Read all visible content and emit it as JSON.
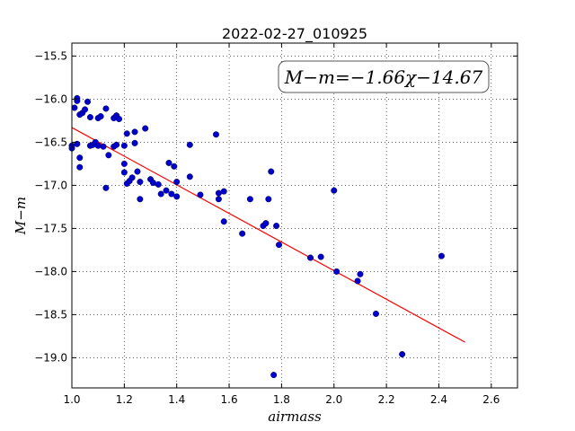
{
  "chart_data": {
    "type": "scatter",
    "title": "2022-02-27_010925",
    "xlabel": "airmass",
    "ylabel": "M−m",
    "xlim": [
      1.0,
      2.7
    ],
    "ylim": [
      -15.35,
      -19.35
    ],
    "y_inverted": true,
    "grid": true,
    "x_ticks": [
      "1.0",
      "1.2",
      "1.4",
      "1.6",
      "1.8",
      "2.0",
      "2.2",
      "2.4",
      "2.6"
    ],
    "y_ticks": [
      "−15.5",
      "−16.0",
      "−16.5",
      "−17.0",
      "−17.5",
      "−18.0",
      "−18.5",
      "−19.0"
    ],
    "annotation": "M−m=−1.66χ−14.67",
    "colors": {
      "points": "#0000cc",
      "fit_line": "#ff0000"
    },
    "fit_line": {
      "slope": -1.66,
      "intercept": -14.67,
      "x_range": [
        1.0,
        2.5
      ]
    },
    "points": [
      [
        1.0,
        -16.54
      ],
      [
        1.0,
        -16.57
      ],
      [
        1.01,
        -16.1
      ],
      [
        1.02,
        -15.99
      ],
      [
        1.02,
        -16.02
      ],
      [
        1.02,
        -16.52
      ],
      [
        1.03,
        -16.18
      ],
      [
        1.03,
        -16.68
      ],
      [
        1.03,
        -16.79
      ],
      [
        1.04,
        -16.16
      ],
      [
        1.05,
        -16.12
      ],
      [
        1.06,
        -16.03
      ],
      [
        1.07,
        -16.21
      ],
      [
        1.07,
        -16.54
      ],
      [
        1.08,
        -16.53
      ],
      [
        1.09,
        -16.5
      ],
      [
        1.1,
        -16.22
      ],
      [
        1.1,
        -16.54
      ],
      [
        1.11,
        -16.2
      ],
      [
        1.12,
        -16.55
      ],
      [
        1.13,
        -16.11
      ],
      [
        1.13,
        -17.03
      ],
      [
        1.14,
        -16.65
      ],
      [
        1.16,
        -16.22
      ],
      [
        1.16,
        -16.55
      ],
      [
        1.17,
        -16.19
      ],
      [
        1.17,
        -16.53
      ],
      [
        1.18,
        -16.23
      ],
      [
        1.2,
        -16.54
      ],
      [
        1.2,
        -16.75
      ],
      [
        1.2,
        -16.85
      ],
      [
        1.21,
        -16.4
      ],
      [
        1.21,
        -16.98
      ],
      [
        1.22,
        -16.95
      ],
      [
        1.23,
        -16.91
      ],
      [
        1.24,
        -16.38
      ],
      [
        1.24,
        -16.51
      ],
      [
        1.25,
        -16.84
      ],
      [
        1.26,
        -16.96
      ],
      [
        1.26,
        -17.16
      ],
      [
        1.28,
        -16.34
      ],
      [
        1.3,
        -16.93
      ],
      [
        1.31,
        -16.97
      ],
      [
        1.33,
        -16.99
      ],
      [
        1.34,
        -17.1
      ],
      [
        1.36,
        -17.06
      ],
      [
        1.37,
        -16.74
      ],
      [
        1.38,
        -17.1
      ],
      [
        1.39,
        -16.78
      ],
      [
        1.4,
        -16.96
      ],
      [
        1.4,
        -17.13
      ],
      [
        1.45,
        -16.9
      ],
      [
        1.45,
        -16.53
      ],
      [
        1.49,
        -17.11
      ],
      [
        1.55,
        -16.41
      ],
      [
        1.56,
        -17.09
      ],
      [
        1.56,
        -17.16
      ],
      [
        1.58,
        -17.07
      ],
      [
        1.58,
        -17.42
      ],
      [
        1.65,
        -17.56
      ],
      [
        1.68,
        -17.16
      ],
      [
        1.73,
        -17.47
      ],
      [
        1.74,
        -17.44
      ],
      [
        1.75,
        -17.16
      ],
      [
        1.76,
        -16.84
      ],
      [
        1.77,
        -19.2
      ],
      [
        1.78,
        -17.47
      ],
      [
        1.79,
        -17.69
      ],
      [
        1.91,
        -17.84
      ],
      [
        1.95,
        -17.83
      ],
      [
        2.0,
        -17.06
      ],
      [
        2.01,
        -18.0
      ],
      [
        2.09,
        -18.11
      ],
      [
        2.1,
        -18.03
      ],
      [
        2.16,
        -18.49
      ],
      [
        2.26,
        -18.96
      ],
      [
        2.41,
        -17.82
      ]
    ]
  }
}
